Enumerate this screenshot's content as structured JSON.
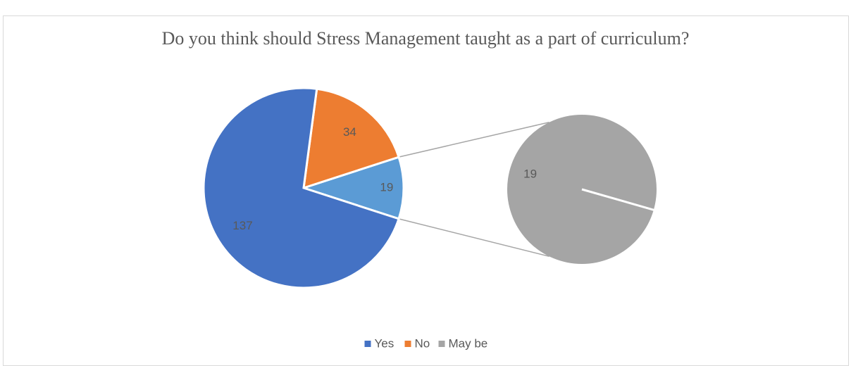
{
  "chart_data": {
    "type": "pie-of-pie",
    "title": "Do you think should Stress Management taught as a part of curriculum?",
    "categories": [
      "Yes",
      "No",
      "May be"
    ],
    "values": [
      137,
      34,
      19
    ],
    "colors": [
      "#4472c4",
      "#ed7d31",
      "#a5a5a5"
    ],
    "other_color": "#5b9bd5",
    "legend": "bottom"
  }
}
